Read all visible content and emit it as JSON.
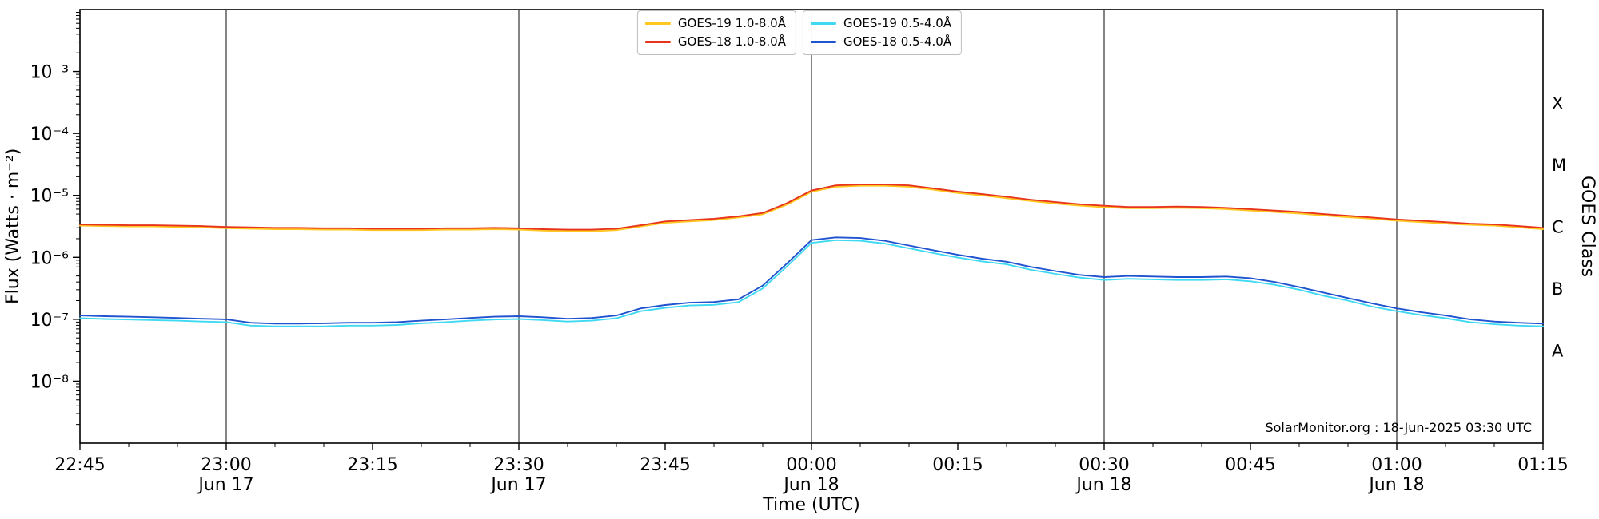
{
  "chart_data": {
    "type": "line",
    "xlabel": "Time (UTC)",
    "ylabel": "Flux (Watts · m⁻²)",
    "right_axis_label": "GOES Class",
    "annotation": "SolarMonitor.org : 18-Jun-2025 03:30 UTC",
    "grid_color": "#3b3b3b",
    "x_range_minutes": [
      0,
      150
    ],
    "y_range": [
      1e-09,
      0.01
    ],
    "x_minutes": [
      0,
      2.5,
      5,
      7.5,
      10,
      12.5,
      15,
      17.5,
      20,
      22.5,
      25,
      27.5,
      30,
      32.5,
      35,
      37.5,
      40,
      42.5,
      45,
      47.5,
      50,
      52.5,
      55,
      57.5,
      60,
      62.5,
      65,
      67.5,
      70,
      72.5,
      75,
      77.5,
      80,
      82.5,
      85,
      87.5,
      90,
      92.5,
      95,
      97.5,
      100,
      102.5,
      105,
      107.5,
      110,
      112.5,
      115,
      117.5,
      120,
      122.5,
      125,
      127.5,
      130,
      132.5,
      135,
      137.5,
      140,
      142.5,
      145,
      147.5,
      150
    ],
    "series": [
      {
        "name": "GOES-19 1.0-8.0Å",
        "color": "#ffc71f",
        "values": [
          3.25e-06,
          3.2e-06,
          3.15e-06,
          3.15e-06,
          3.1e-06,
          3.05e-06,
          2.95e-06,
          2.9e-06,
          2.85e-06,
          2.85e-06,
          2.8e-06,
          2.8e-06,
          2.75e-06,
          2.75e-06,
          2.75e-06,
          2.8e-06,
          2.8e-06,
          2.85e-06,
          2.8e-06,
          2.7e-06,
          2.65e-06,
          2.65e-06,
          2.75e-06,
          3.15e-06,
          3.6e-06,
          3.8e-06,
          4e-06,
          4.4e-06,
          4.95e-06,
          7.1e-06,
          1.14e-05,
          1.38e-05,
          1.43e-05,
          1.43e-05,
          1.38e-05,
          1.24e-05,
          1.09e-05,
          1e-05,
          9e-06,
          8.1e-06,
          7.4e-06,
          6.85e-06,
          6.45e-06,
          6.2e-06,
          6.2e-06,
          6.3e-06,
          6.2e-06,
          6e-06,
          5.7e-06,
          5.4e-06,
          5.1e-06,
          4.75e-06,
          4.45e-06,
          4.2e-06,
          3.9e-06,
          3.7e-06,
          3.5e-06,
          3.35e-06,
          3.25e-06,
          3.05e-06,
          2.85e-06
        ]
      },
      {
        "name": "GOES-18 1.0-8.0Å",
        "color": "#e8341c",
        "values": [
          3.4e-06,
          3.35e-06,
          3.3e-06,
          3.3e-06,
          3.25e-06,
          3.2e-06,
          3.1e-06,
          3.05e-06,
          3e-06,
          3e-06,
          2.95e-06,
          2.95e-06,
          2.9e-06,
          2.9e-06,
          2.9e-06,
          2.95e-06,
          2.95e-06,
          3e-06,
          2.95e-06,
          2.85e-06,
          2.8e-06,
          2.8e-06,
          2.9e-06,
          3.3e-06,
          3.8e-06,
          4e-06,
          4.2e-06,
          4.6e-06,
          5.2e-06,
          7.5e-06,
          1.2e-05,
          1.45e-05,
          1.5e-05,
          1.5e-05,
          1.45e-05,
          1.3e-05,
          1.15e-05,
          1.05e-05,
          9.5e-06,
          8.5e-06,
          7.8e-06,
          7.2e-06,
          6.8e-06,
          6.5e-06,
          6.5e-06,
          6.6e-06,
          6.5e-06,
          6.3e-06,
          6e-06,
          5.7e-06,
          5.4e-06,
          5e-06,
          4.7e-06,
          4.4e-06,
          4.1e-06,
          3.9e-06,
          3.7e-06,
          3.5e-06,
          3.4e-06,
          3.2e-06,
          3e-06
        ]
      },
      {
        "name": "GOES-19 0.5-4.0Å",
        "color": "#3fd9f2",
        "values": [
          1.04e-07,
          1.01e-07,
          9.9e-08,
          9.7e-08,
          9.5e-08,
          9.2e-08,
          9e-08,
          7.9e-08,
          7.7e-08,
          7.7e-08,
          7.7e-08,
          7.9e-08,
          7.9e-08,
          8.1e-08,
          8.6e-08,
          9e-08,
          9.5e-08,
          9.9e-08,
          1.01e-07,
          9.7e-08,
          9.2e-08,
          9.5e-08,
          1.04e-07,
          1.35e-07,
          1.53e-07,
          1.67e-07,
          1.71e-07,
          1.89e-07,
          3.15e-07,
          7.2e-07,
          1.71e-06,
          1.89e-06,
          1.85e-06,
          1.67e-06,
          1.4e-06,
          1.17e-06,
          9.9e-07,
          8.6e-07,
          7.7e-07,
          6.3e-07,
          5.4e-07,
          4.7e-07,
          4.3e-07,
          4.5e-07,
          4.4e-07,
          4.3e-07,
          4.3e-07,
          4.4e-07,
          4.1e-07,
          3.6e-07,
          3e-07,
          2.4e-07,
          2e-07,
          1.6e-07,
          1.35e-07,
          1.17e-07,
          1.04e-07,
          9e-08,
          8.3e-08,
          7.9e-08,
          7.7e-08
        ]
      },
      {
        "name": "GOES-18 0.5-4.0Å",
        "color": "#2053cf",
        "values": [
          1.15e-07,
          1.12e-07,
          1.1e-07,
          1.08e-07,
          1.05e-07,
          1.02e-07,
          1e-07,
          8.8e-08,
          8.5e-08,
          8.5e-08,
          8.6e-08,
          8.8e-08,
          8.8e-08,
          9e-08,
          9.5e-08,
          1e-07,
          1.05e-07,
          1.1e-07,
          1.12e-07,
          1.08e-07,
          1.02e-07,
          1.05e-07,
          1.15e-07,
          1.5e-07,
          1.7e-07,
          1.85e-07,
          1.9e-07,
          2.1e-07,
          3.5e-07,
          8e-07,
          1.9e-06,
          2.1e-06,
          2.05e-06,
          1.85e-06,
          1.55e-06,
          1.3e-06,
          1.1e-06,
          9.5e-07,
          8.5e-07,
          7e-07,
          6e-07,
          5.2e-07,
          4.8e-07,
          5e-07,
          4.9e-07,
          4.8e-07,
          4.8e-07,
          4.9e-07,
          4.6e-07,
          4e-07,
          3.3e-07,
          2.7e-07,
          2.2e-07,
          1.8e-07,
          1.5e-07,
          1.3e-07,
          1.15e-07,
          1e-07,
          9.2e-08,
          8.8e-08,
          8.5e-08
        ]
      }
    ],
    "draw_order": [
      0,
      2,
      1,
      3
    ],
    "x_ticks": [
      {
        "t": 0,
        "time": "22:45"
      },
      {
        "t": 15,
        "time": "23:00",
        "date": "Jun 17",
        "grid": true
      },
      {
        "t": 30,
        "time": "23:15"
      },
      {
        "t": 45,
        "time": "23:30",
        "date": "Jun 17",
        "grid": true
      },
      {
        "t": 60,
        "time": "23:45"
      },
      {
        "t": 75,
        "time": "00:00",
        "date": "Jun 18",
        "grid": true
      },
      {
        "t": 90,
        "time": "00:15"
      },
      {
        "t": 105,
        "time": "00:30",
        "date": "Jun 18",
        "grid": true
      },
      {
        "t": 120,
        "time": "00:45"
      },
      {
        "t": 135,
        "time": "01:00",
        "date": "Jun 18",
        "grid": true
      },
      {
        "t": 150,
        "time": "01:15"
      }
    ],
    "y_ticks": [
      {
        "v": 0.001,
        "label": "10⁻³"
      },
      {
        "v": 0.0001,
        "label": "10⁻⁴"
      },
      {
        "v": 1e-05,
        "label": "10⁻⁵"
      },
      {
        "v": 1e-06,
        "label": "10⁻⁶"
      },
      {
        "v": 1e-07,
        "label": "10⁻⁷"
      },
      {
        "v": 1e-08,
        "label": "10⁻⁸"
      }
    ],
    "goes_classes": [
      {
        "label": "X",
        "value": 0.0003162
      },
      {
        "label": "M",
        "value": 3.162e-05
      },
      {
        "label": "C",
        "value": 3.162e-06
      },
      {
        "label": "B",
        "value": 3.162e-07
      },
      {
        "label": "A",
        "value": 3.162e-08
      }
    ],
    "legend_position": "top-center"
  }
}
